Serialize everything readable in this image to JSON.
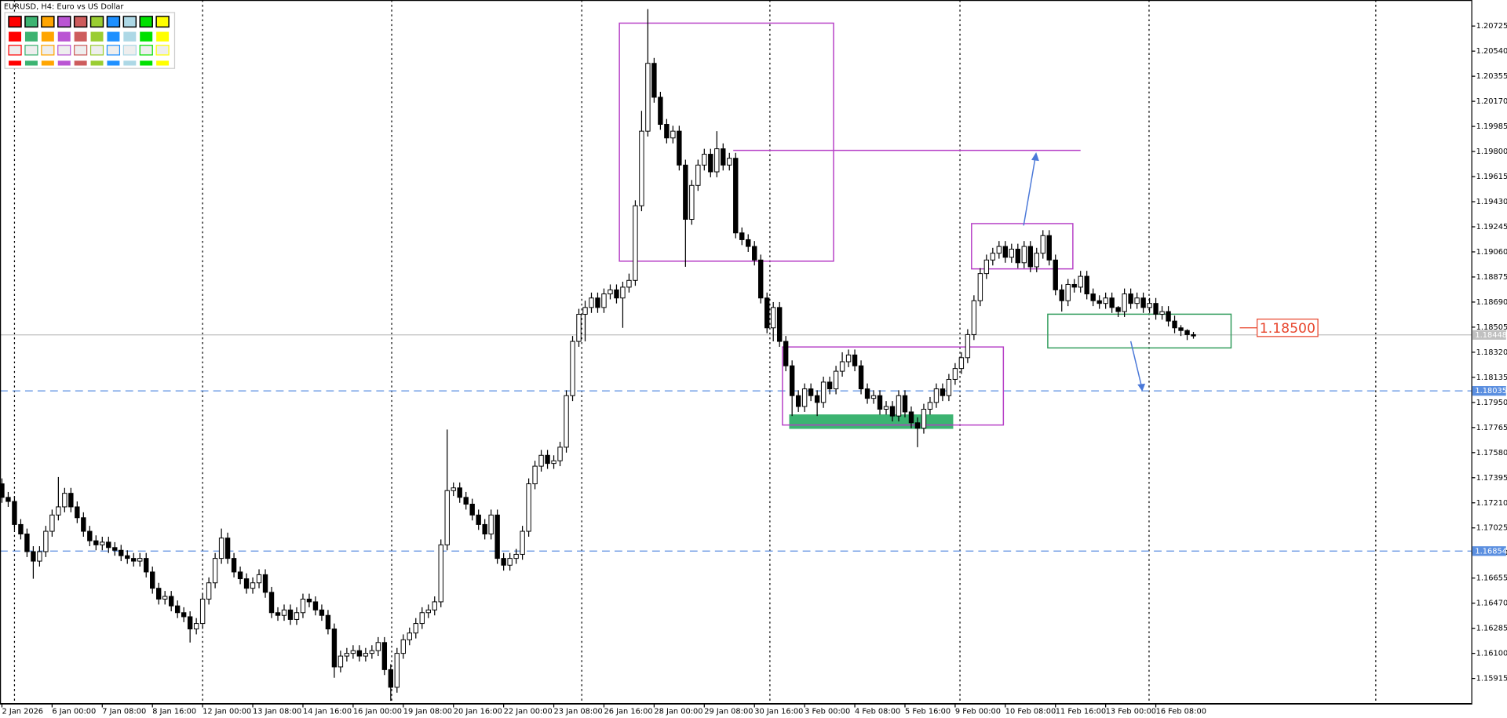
{
  "chart_data": {
    "type": "candlestick",
    "title": "EURUSD, H4:  Euro vs US Dollar",
    "categories": [
      "2 Jan 2026",
      null,
      null,
      null,
      null,
      null,
      null,
      null,
      "6 Jan 00:00",
      null,
      null,
      null,
      null,
      null,
      null,
      null,
      "7 Jan 08:00",
      null,
      null,
      null,
      null,
      null,
      null,
      null,
      "8 Jan 16:00",
      null,
      null,
      null,
      null,
      null,
      null,
      null,
      "12 Jan 00:00",
      null,
      null,
      null,
      null,
      null,
      null,
      null,
      "13 Jan 08:00",
      null,
      null,
      null,
      null,
      null,
      null,
      null,
      "14 Jan 16:00",
      null,
      null,
      null,
      null,
      null,
      null,
      null,
      "16 Jan 00:00",
      null,
      null,
      null,
      null,
      null,
      null,
      null,
      "19 Jan 08:00",
      null,
      null,
      null,
      null,
      null,
      null,
      null,
      "20 Jan 16:00",
      null,
      null,
      null,
      null,
      null,
      null,
      null,
      "22 Jan 00:00",
      null,
      null,
      null,
      null,
      null,
      null,
      null,
      "23 Jan 08:00",
      null,
      null,
      null,
      null,
      null,
      null,
      null,
      "26 Jan 16:00",
      null,
      null,
      null,
      null,
      null,
      null,
      null,
      "28 Jan 00:00",
      null,
      null,
      null,
      null,
      null,
      null,
      null,
      "29 Jan 08:00",
      null,
      null,
      null,
      null,
      null,
      null,
      null,
      "30 Jan 16:00",
      null,
      null,
      null,
      null,
      null,
      null,
      null,
      "3 Feb 00:00",
      null,
      null,
      null,
      null,
      null,
      null,
      null,
      "4 Feb 08:00",
      null,
      null,
      null,
      null,
      null,
      null,
      null,
      "5 Feb 16:00",
      null,
      null,
      null,
      null,
      null,
      null,
      null,
      "9 Feb 00:00",
      null,
      null,
      null,
      null,
      null,
      null,
      null,
      "10 Feb 08:00",
      null,
      null,
      null,
      null,
      null,
      null,
      null,
      "11 Feb 16:00",
      null,
      null,
      null,
      null,
      null,
      null,
      null,
      "13 Feb 00:00",
      null,
      null,
      null,
      null,
      null,
      null,
      null,
      "16 Feb 08:00",
      null,
      null,
      null,
      null,
      null,
      null
    ],
    "open": [
      1.1735,
      1.1725,
      1.1722,
      1.1705,
      1.1698,
      1.1685,
      1.1678,
      1.1685,
      1.17,
      1.1712,
      1.1718,
      1.1728,
      1.1718,
      1.171,
      1.17,
      1.1693,
      1.169,
      1.1692,
      1.1688,
      1.1686,
      1.1682,
      1.168,
      1.1678,
      1.168,
      1.167,
      1.1658,
      1.165,
      1.1652,
      1.1645,
      1.164,
      1.1637,
      1.1628,
      1.1632,
      1.165,
      1.1662,
      1.168,
      1.1695,
      1.168,
      1.167,
      1.1665,
      1.1658,
      1.1662,
      1.1668,
      1.1655,
      1.164,
      1.1638,
      1.1642,
      1.1635,
      1.164,
      1.165,
      1.1648,
      1.1642,
      1.1638,
      1.1628,
      1.16,
      1.1608,
      1.161,
      1.1612,
      1.1608,
      1.161,
      1.1612,
      1.1618,
      1.1598,
      1.1585,
      1.161,
      1.162,
      1.1625,
      1.1632,
      1.164,
      1.1642,
      1.1648,
      1.169,
      1.173,
      1.1732,
      1.1725,
      1.172,
      1.1712,
      1.1705,
      1.1698,
      1.1712,
      1.168,
      1.1675,
      1.168,
      1.1683,
      1.17,
      1.1735,
      1.1748,
      1.1756,
      1.175,
      1.1752,
      1.1762,
      1.18,
      1.184,
      1.186,
      1.1865,
      1.1872,
      1.1865,
      1.1875,
      1.1878,
      1.1872,
      1.188,
      1.1885,
      1.194,
      1.1995,
      1.2045,
      1.202,
      1.2,
      1.199,
      1.1995,
      1.197,
      1.193,
      1.1955,
      1.197,
      1.1978,
      1.1965,
      1.1982,
      1.197,
      1.1975,
      1.192,
      1.1915,
      1.191,
      1.19,
      1.1872,
      1.185,
      1.1865,
      1.184,
      1.1822,
      1.18,
      1.1792,
      1.1805,
      1.18,
      1.1795,
      1.181,
      1.1805,
      1.1818,
      1.1825,
      1.183,
      1.1822,
      1.1805,
      1.1798,
      1.18,
      1.179,
      1.1792,
      1.1785,
      1.18,
      1.1788,
      1.178,
      1.1776,
      1.179,
      1.1795,
      1.1805,
      1.18,
      1.1812,
      1.182,
      1.1828,
      1.1845,
      1.187,
      1.189,
      1.19,
      1.1905,
      1.191,
      1.1902,
      1.1908,
      1.1898,
      1.191,
      1.1895,
      1.1905,
      1.1918,
      1.19,
      1.1878,
      1.187,
      1.1882,
      1.188,
      1.1888,
      1.1875,
      1.187,
      1.1868,
      1.1872,
      1.1865,
      1.1862,
      1.1875,
      1.1868,
      1.1872,
      1.1865,
      1.1868,
      1.186,
      1.1862,
      1.1855,
      1.185,
      1.1848,
      1.1845
    ],
    "high": [
      1.1739,
      1.1729,
      1.1726,
      1.1709,
      1.1702,
      1.1689,
      1.1689,
      1.1704,
      1.1716,
      1.174,
      1.1732,
      1.1732,
      1.1722,
      1.1714,
      1.1704,
      1.1697,
      1.1696,
      1.1696,
      1.1692,
      1.169,
      1.1686,
      1.1684,
      1.1684,
      1.1684,
      1.1674,
      1.1662,
      1.1656,
      1.1656,
      1.1649,
      1.1644,
      1.1641,
      1.1636,
      1.1654,
      1.1666,
      1.1684,
      1.1702,
      1.1699,
      1.1684,
      1.1674,
      1.1669,
      1.1666,
      1.1672,
      1.1672,
      1.1659,
      1.1644,
      1.1646,
      1.1646,
      1.1644,
      1.1654,
      1.1654,
      1.1652,
      1.1646,
      1.1642,
      1.1632,
      1.1612,
      1.1614,
      1.1616,
      1.1616,
      1.1614,
      1.1616,
      1.1622,
      1.1622,
      1.1602,
      1.1614,
      1.1624,
      1.1629,
      1.1636,
      1.1644,
      1.1646,
      1.1652,
      1.1694,
      1.1775,
      1.1736,
      1.1736,
      1.1729,
      1.1724,
      1.1716,
      1.1709,
      1.1716,
      1.1716,
      1.1684,
      1.1684,
      1.1687,
      1.1704,
      1.1739,
      1.1752,
      1.176,
      1.176,
      1.1756,
      1.1766,
      1.1804,
      1.1844,
      1.1864,
      1.187,
      1.1876,
      1.1876,
      1.1879,
      1.1882,
      1.1882,
      1.1884,
      1.189,
      1.1944,
      1.201,
      1.2085,
      1.2049,
      1.2024,
      1.2004,
      1.1999,
      1.1999,
      1.1974,
      1.1959,
      1.1974,
      1.1982,
      1.1982,
      1.1995,
      1.1986,
      1.1979,
      1.1979,
      1.1924,
      1.1919,
      1.1914,
      1.1904,
      1.1876,
      1.1869,
      1.1869,
      1.1844,
      1.1826,
      1.1804,
      1.1809,
      1.1809,
      1.1804,
      1.1814,
      1.1814,
      1.1822,
      1.1832,
      1.1834,
      1.1834,
      1.1826,
      1.1809,
      1.1804,
      1.1804,
      1.1796,
      1.1796,
      1.1804,
      1.1804,
      1.1792,
      1.1784,
      1.1794,
      1.1799,
      1.1809,
      1.1809,
      1.1816,
      1.1824,
      1.1832,
      1.1849,
      1.1874,
      1.1894,
      1.1904,
      1.1909,
      1.1914,
      1.1914,
      1.1912,
      1.1912,
      1.1914,
      1.1914,
      1.1909,
      1.1922,
      1.1922,
      1.1904,
      1.1882,
      1.1886,
      1.1886,
      1.1892,
      1.1892,
      1.1879,
      1.1874,
      1.1876,
      1.1876,
      1.1866,
      1.1879,
      1.1879,
      1.1876,
      1.1876,
      1.1872,
      1.1872,
      1.1866,
      1.1866,
      1.1859,
      1.1852,
      1.1849,
      1.1847
    ],
    "low": [
      1.1721,
      1.1718,
      1.1701,
      1.1694,
      1.1681,
      1.1665,
      1.1674,
      1.1681,
      1.1696,
      1.1708,
      1.1714,
      1.1714,
      1.1706,
      1.1696,
      1.1689,
      1.1686,
      1.1686,
      1.1684,
      1.1682,
      1.1678,
      1.1676,
      1.1674,
      1.1674,
      1.1666,
      1.1654,
      1.1646,
      1.1646,
      1.1641,
      1.1636,
      1.1633,
      1.1618,
      1.1624,
      1.1628,
      1.1646,
      1.1658,
      1.1676,
      1.1676,
      1.1666,
      1.1661,
      1.1654,
      1.1654,
      1.1658,
      1.1651,
      1.1636,
      1.1634,
      1.1634,
      1.1631,
      1.1631,
      1.1636,
      1.1644,
      1.1638,
      1.1634,
      1.1624,
      1.1592,
      1.1596,
      1.1604,
      1.1606,
      1.1604,
      1.1604,
      1.1606,
      1.1608,
      1.1594,
      1.1575,
      1.1581,
      1.1606,
      1.1616,
      1.1621,
      1.1628,
      1.1636,
      1.1638,
      1.1644,
      1.1686,
      1.1726,
      1.1721,
      1.1716,
      1.1708,
      1.1701,
      1.1694,
      1.1694,
      1.1676,
      1.1671,
      1.1671,
      1.1676,
      1.1679,
      1.1696,
      1.1731,
      1.1744,
      1.1746,
      1.1746,
      1.1748,
      1.1758,
      1.1796,
      1.1836,
      1.184,
      1.1861,
      1.1861,
      1.1861,
      1.1871,
      1.1868,
      1.185,
      1.1876,
      1.1881,
      1.1936,
      1.1991,
      1.2016,
      1.1996,
      1.1986,
      1.1986,
      1.1966,
      1.1895,
      1.1926,
      1.1951,
      1.1966,
      1.1961,
      1.1961,
      1.1966,
      1.1966,
      1.1916,
      1.1911,
      1.1906,
      1.1896,
      1.1868,
      1.1846,
      1.184,
      1.1836,
      1.1818,
      1.1785,
      1.1788,
      1.1788,
      1.1796,
      1.1785,
      1.1791,
      1.1801,
      1.1801,
      1.1814,
      1.1821,
      1.1818,
      1.1801,
      1.1794,
      1.1794,
      1.1786,
      1.1786,
      1.1781,
      1.1781,
      1.1784,
      1.1776,
      1.1762,
      1.1772,
      1.1786,
      1.1791,
      1.1796,
      1.1796,
      1.1808,
      1.1816,
      1.1824,
      1.1841,
      1.1866,
      1.1886,
      1.1896,
      1.1901,
      1.1898,
      1.1898,
      1.1894,
      1.1894,
      1.1891,
      1.1891,
      1.1901,
      1.1896,
      1.1874,
      1.1862,
      1.1866,
      1.1876,
      1.1876,
      1.1871,
      1.1866,
      1.1864,
      1.1864,
      1.1861,
      1.1858,
      1.1858,
      1.1864,
      1.1864,
      1.1861,
      1.1861,
      1.1856,
      1.1856,
      1.1851,
      1.1846,
      1.1844,
      1.1841,
      1.1842
    ],
    "close": [
      1.1725,
      1.1722,
      1.1705,
      1.1698,
      1.1685,
      1.1678,
      1.1685,
      1.17,
      1.1712,
      1.1718,
      1.1728,
      1.1718,
      1.171,
      1.17,
      1.1693,
      1.169,
      1.1692,
      1.1688,
      1.1686,
      1.1682,
      1.168,
      1.1678,
      1.168,
      1.167,
      1.1658,
      1.165,
      1.1652,
      1.1645,
      1.164,
      1.1637,
      1.1628,
      1.1632,
      1.165,
      1.1662,
      1.168,
      1.1695,
      1.168,
      1.167,
      1.1665,
      1.1658,
      1.1662,
      1.1668,
      1.1655,
      1.164,
      1.1638,
      1.1642,
      1.1635,
      1.164,
      1.165,
      1.1648,
      1.1642,
      1.1638,
      1.1628,
      1.16,
      1.1608,
      1.161,
      1.1612,
      1.1608,
      1.161,
      1.1612,
      1.1618,
      1.1598,
      1.1585,
      1.161,
      1.162,
      1.1625,
      1.1632,
      1.164,
      1.1642,
      1.1648,
      1.169,
      1.173,
      1.1732,
      1.1725,
      1.172,
      1.1712,
      1.1705,
      1.1698,
      1.1712,
      1.168,
      1.1675,
      1.168,
      1.1683,
      1.17,
      1.1735,
      1.1748,
      1.1756,
      1.175,
      1.1752,
      1.1762,
      1.18,
      1.184,
      1.186,
      1.1865,
      1.1872,
      1.1865,
      1.1875,
      1.1878,
      1.1872,
      1.188,
      1.1885,
      1.194,
      1.1995,
      1.2045,
      1.202,
      1.2,
      1.199,
      1.1995,
      1.197,
      1.193,
      1.1955,
      1.197,
      1.1978,
      1.1965,
      1.1982,
      1.197,
      1.1975,
      1.192,
      1.1915,
      1.191,
      1.19,
      1.1872,
      1.185,
      1.1865,
      1.184,
      1.1822,
      1.18,
      1.1792,
      1.1805,
      1.18,
      1.1795,
      1.181,
      1.1805,
      1.1818,
      1.1825,
      1.183,
      1.1822,
      1.1805,
      1.1798,
      1.18,
      1.179,
      1.1792,
      1.1785,
      1.18,
      1.1788,
      1.178,
      1.1776,
      1.179,
      1.1795,
      1.1805,
      1.18,
      1.1812,
      1.182,
      1.1828,
      1.1845,
      1.187,
      1.189,
      1.19,
      1.1905,
      1.191,
      1.1902,
      1.1908,
      1.1898,
      1.191,
      1.1895,
      1.1905,
      1.1918,
      1.19,
      1.1878,
      1.187,
      1.1882,
      1.188,
      1.1888,
      1.1875,
      1.187,
      1.1868,
      1.1872,
      1.1865,
      1.1862,
      1.1875,
      1.1868,
      1.1872,
      1.1865,
      1.1868,
      1.186,
      1.1862,
      1.1855,
      1.185,
      1.1848,
      1.1845,
      1.1844
    ],
    "ylim": [
      1.1573,
      1.20917
    ],
    "yticks": [
      1.15915,
      {
        "value": 1.161,
        "label": "1.16100"
      },
      1.16285,
      {
        "value": 1.1647,
        "label": "1.16470"
      },
      1.16655,
      {
        "value": 1.1684,
        "label": "1.16840"
      },
      1.17025,
      {
        "value": 1.1721,
        "label": "1.17210"
      },
      1.17395,
      {
        "value": 1.1758,
        "label": "1.17580"
      },
      1.17765,
      {
        "value": 1.1795,
        "label": "1.17950"
      },
      1.18135,
      {
        "value": 1.1832,
        "label": "1.18320"
      },
      1.18505,
      {
        "value": 1.1869,
        "label": "1.18690"
      },
      1.18875,
      {
        "value": 1.1906,
        "label": "1.19060"
      },
      1.19245,
      {
        "value": 1.1943,
        "label": "1.19430"
      },
      1.19615,
      {
        "value": 1.198,
        "label": "1.19800"
      },
      1.19985,
      {
        "value": 1.2017,
        "label": "1.20170"
      },
      1.20355,
      {
        "value": 1.2054,
        "label": "1.20540"
      },
      1.20725
    ],
    "hlines": [
      1.18035,
      1.16854
    ],
    "hline_color": "#5b8fe0",
    "last_price": 1.18448,
    "last_price_color": "#c0c0c0",
    "price_note": {
      "value": 1.185,
      "label": "1.18500",
      "color": "#e8452c"
    },
    "bull_color": "#ffffff",
    "bear_color": "#000000"
  }
}
